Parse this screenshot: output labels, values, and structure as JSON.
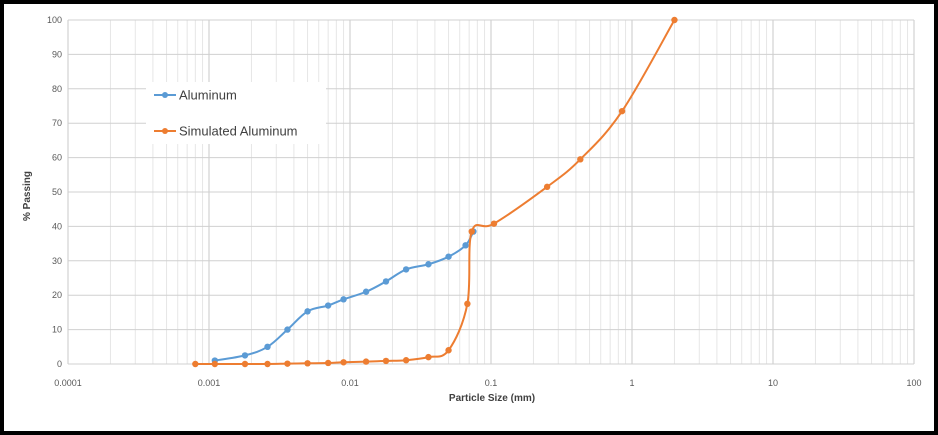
{
  "chart_data": {
    "type": "line",
    "title": "",
    "xlabel": "Particle Size (mm)",
    "ylabel": "% Passing",
    "x_scale": "log",
    "xlim": [
      0.0001,
      100
    ],
    "ylim": [
      0,
      100
    ],
    "x_ticks": [
      0.0001,
      0.001,
      0.01,
      0.1,
      1,
      10,
      100
    ],
    "x_tick_labels": [
      "0.0001",
      "0.001",
      "0.01",
      "0.1",
      "1",
      "10",
      "100"
    ],
    "y_ticks": [
      0,
      10,
      20,
      30,
      40,
      50,
      60,
      70,
      80,
      90,
      100
    ],
    "y_tick_labels": [
      "0",
      "10",
      "20",
      "30",
      "40",
      "50",
      "60",
      "70",
      "80",
      "90",
      "100"
    ],
    "grid": "major and minor",
    "legend_position": "top-left",
    "series": [
      {
        "name": "Aluminum",
        "color": "#5b9bd5",
        "x": [
          0.0011,
          0.0018,
          0.0026,
          0.0036,
          0.005,
          0.007,
          0.009,
          0.013,
          0.018,
          0.025,
          0.036,
          0.05,
          0.066,
          0.075
        ],
        "y": [
          1,
          2.5,
          5,
          10,
          15.3,
          17,
          18.8,
          21,
          24,
          27.5,
          29,
          31.2,
          34.5,
          38.5
        ]
      },
      {
        "name": "Simulated Aluminum",
        "color": "#ed7d31",
        "x": [
          0.0008,
          0.0011,
          0.0018,
          0.0026,
          0.0036,
          0.005,
          0.007,
          0.009,
          0.013,
          0.018,
          0.025,
          0.036,
          0.05,
          0.068,
          0.073,
          0.105,
          0.25,
          0.43,
          0.85,
          2.0
        ],
        "y": [
          0,
          0,
          0,
          0,
          0.1,
          0.2,
          0.3,
          0.5,
          0.7,
          0.9,
          1.1,
          2,
          4,
          17.5,
          38.5,
          40.8,
          51.5,
          59.5,
          73.5,
          100
        ]
      }
    ]
  }
}
